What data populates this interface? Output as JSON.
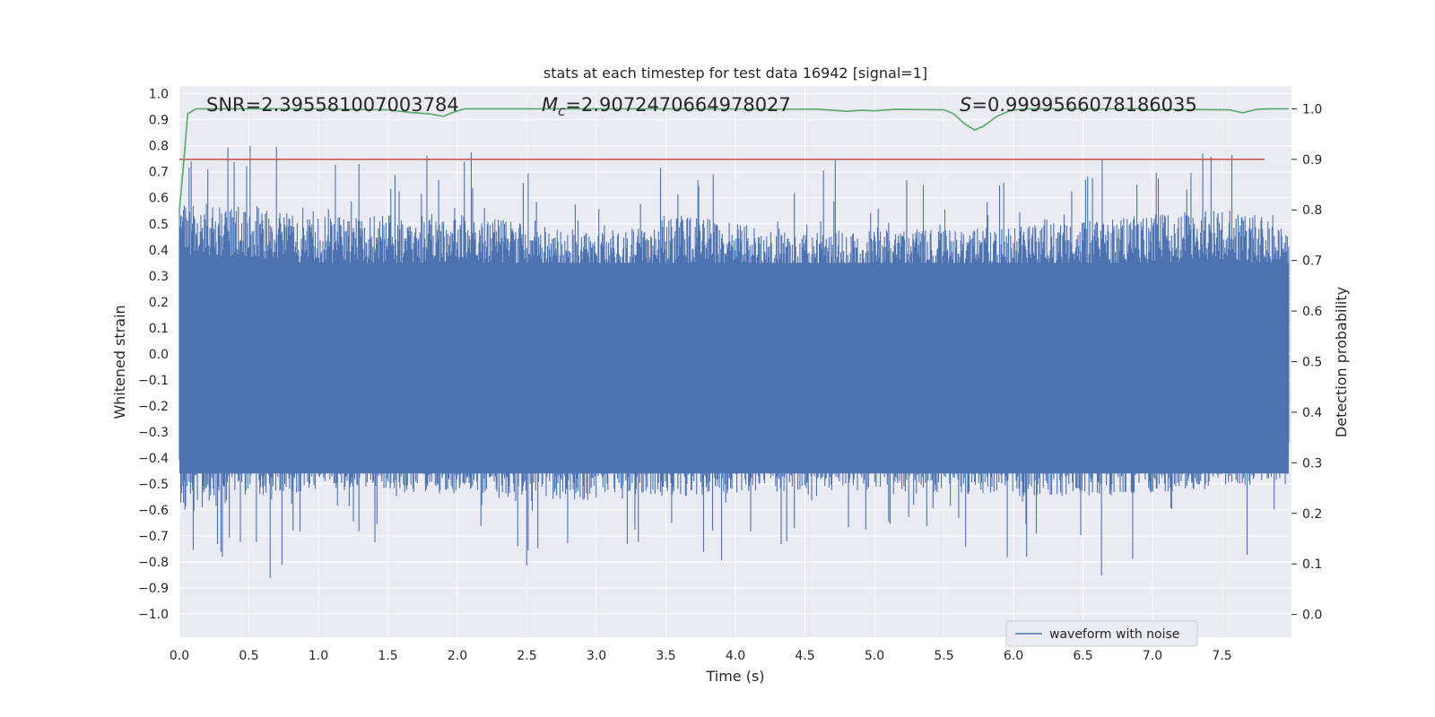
{
  "chart_data": {
    "type": "line",
    "title": "stats at each timestep for test data 16942 [signal=1]",
    "xlabel": "Time (s)",
    "ylabel": "Whitened strain",
    "y2label": "Detection probability",
    "xlim": [
      0.0,
      8.0
    ],
    "ylim": [
      -1.09,
      1.03
    ],
    "y2lim": [
      -0.045,
      1.045
    ],
    "x_ticks": [
      "0.0",
      "0.5",
      "1.0",
      "1.5",
      "2.0",
      "2.5",
      "3.0",
      "3.5",
      "4.0",
      "4.5",
      "5.0",
      "5.5",
      "6.0",
      "6.5",
      "7.0",
      "7.5"
    ],
    "y_ticks": [
      "1.0",
      "0.9",
      "0.8",
      "0.7",
      "0.6",
      "0.5",
      "0.4",
      "0.3",
      "0.2",
      "0.1",
      "0.0",
      "−0.1",
      "−0.2",
      "−0.3",
      "−0.4",
      "−0.5",
      "−0.6",
      "−0.7",
      "−0.8",
      "−0.9",
      "−1.0"
    ],
    "y2_ticks": [
      "1.0",
      "0.9",
      "0.8",
      "0.7",
      "0.6",
      "0.5",
      "0.4",
      "0.3",
      "0.2",
      "0.1",
      "0.0"
    ],
    "grid": true,
    "legend_position": "lower-right",
    "annotations": {
      "snr": "SNR=2.395581007003784",
      "mc_symbol": "M",
      "mc_sub": "c",
      "mc_value": "=2.9072470664978027",
      "s_symbol": "S",
      "s_value": "=0.9999566078186035"
    },
    "series": [
      {
        "name": "waveform with noise",
        "axis": "left",
        "color": "#4c72b0",
        "render": "dense-noise",
        "envelope_top": [
          [
            0.0,
            0.95
          ],
          [
            0.5,
            0.93
          ],
          [
            1.0,
            0.85
          ],
          [
            2.0,
            0.87
          ],
          [
            3.0,
            0.75
          ],
          [
            3.6,
            0.86
          ],
          [
            4.5,
            0.76
          ],
          [
            5.8,
            0.78
          ],
          [
            7.5,
            0.9
          ],
          [
            7.9,
            0.84
          ]
        ],
        "envelope_bottom": [
          [
            0.0,
            -1.0
          ],
          [
            0.33,
            -0.93
          ],
          [
            0.48,
            -0.9
          ],
          [
            1.1,
            -0.84
          ],
          [
            2.9,
            -0.91
          ],
          [
            4.5,
            -0.85
          ],
          [
            6.5,
            -0.89
          ],
          [
            7.9,
            -0.82
          ]
        ]
      },
      {
        "name": "detection probability",
        "axis": "right",
        "color": "#55a868",
        "points": [
          [
            0.0,
            0.8
          ],
          [
            0.03,
            0.89
          ],
          [
            0.06,
            0.99
          ],
          [
            0.12,
            1.0
          ],
          [
            0.3,
            1.0
          ],
          [
            1.0,
            1.0
          ],
          [
            1.5,
            0.998
          ],
          [
            1.65,
            0.993
          ],
          [
            1.8,
            0.99
          ],
          [
            1.9,
            0.985
          ],
          [
            1.97,
            0.993
          ],
          [
            2.05,
            1.0
          ],
          [
            2.5,
            1.0
          ],
          [
            3.5,
            1.0
          ],
          [
            4.6,
            0.999
          ],
          [
            4.8,
            0.995
          ],
          [
            4.9,
            0.997
          ],
          [
            5.0,
            0.996
          ],
          [
            5.15,
            0.999
          ],
          [
            5.5,
            0.998
          ],
          [
            5.57,
            0.99
          ],
          [
            5.65,
            0.97
          ],
          [
            5.72,
            0.958
          ],
          [
            5.78,
            0.965
          ],
          [
            5.88,
            0.985
          ],
          [
            5.98,
            0.997
          ],
          [
            6.1,
            1.0
          ],
          [
            6.9,
            1.0
          ],
          [
            7.0,
            0.997
          ],
          [
            7.1,
            0.999
          ],
          [
            7.55,
            0.998
          ],
          [
            7.65,
            0.992
          ],
          [
            7.75,
            0.999
          ],
          [
            7.85,
            1.0
          ],
          [
            7.98,
            1.0
          ]
        ]
      },
      {
        "name": "threshold",
        "axis": "right",
        "color": "#c44e52",
        "points": [
          [
            0.0,
            0.9
          ],
          [
            8.0,
            0.9
          ]
        ]
      }
    ]
  }
}
